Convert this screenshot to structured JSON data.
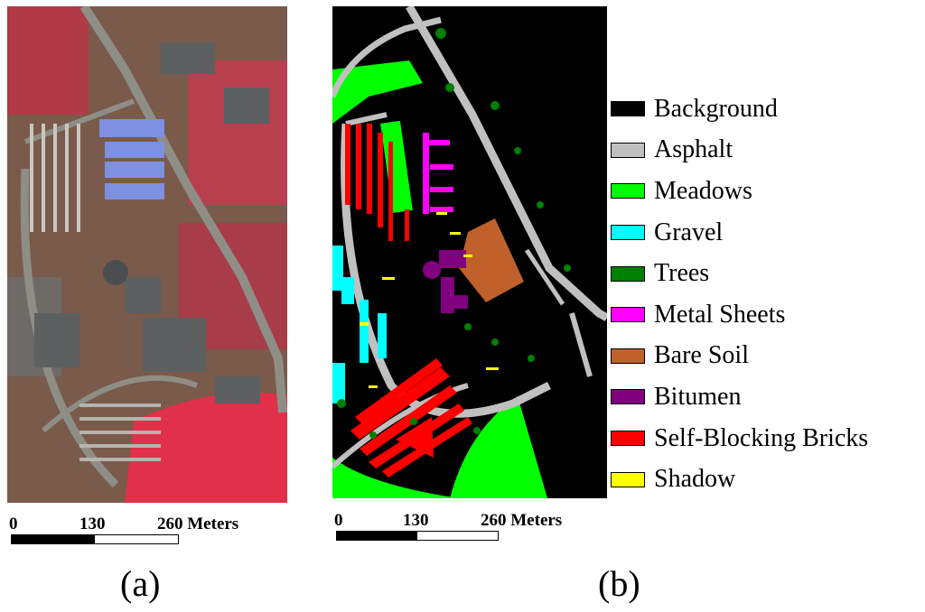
{
  "panels": {
    "a": {
      "label": "(a)"
    },
    "b": {
      "label": "(b)"
    }
  },
  "scalebar": {
    "tick_0": "0",
    "tick_1": "130",
    "tick_2": "260 Meters"
  },
  "legend": [
    {
      "label": "Background",
      "color": "#000000"
    },
    {
      "label": "Asphalt",
      "color": "#c0c0c0"
    },
    {
      "label": "Meadows",
      "color": "#00ff00"
    },
    {
      "label": "Gravel",
      "color": "#00ffff"
    },
    {
      "label": "Trees",
      "color": "#008000"
    },
    {
      "label": "Metal Sheets",
      "color": "#ff00ff"
    },
    {
      "label": "Bare Soil",
      "color": "#c0602a"
    },
    {
      "label": "Bitumen",
      "color": "#800080"
    },
    {
      "label": "Self-Blocking Bricks",
      "color": "#ff0000"
    },
    {
      "label": "Shadow",
      "color": "#ffff00"
    }
  ]
}
